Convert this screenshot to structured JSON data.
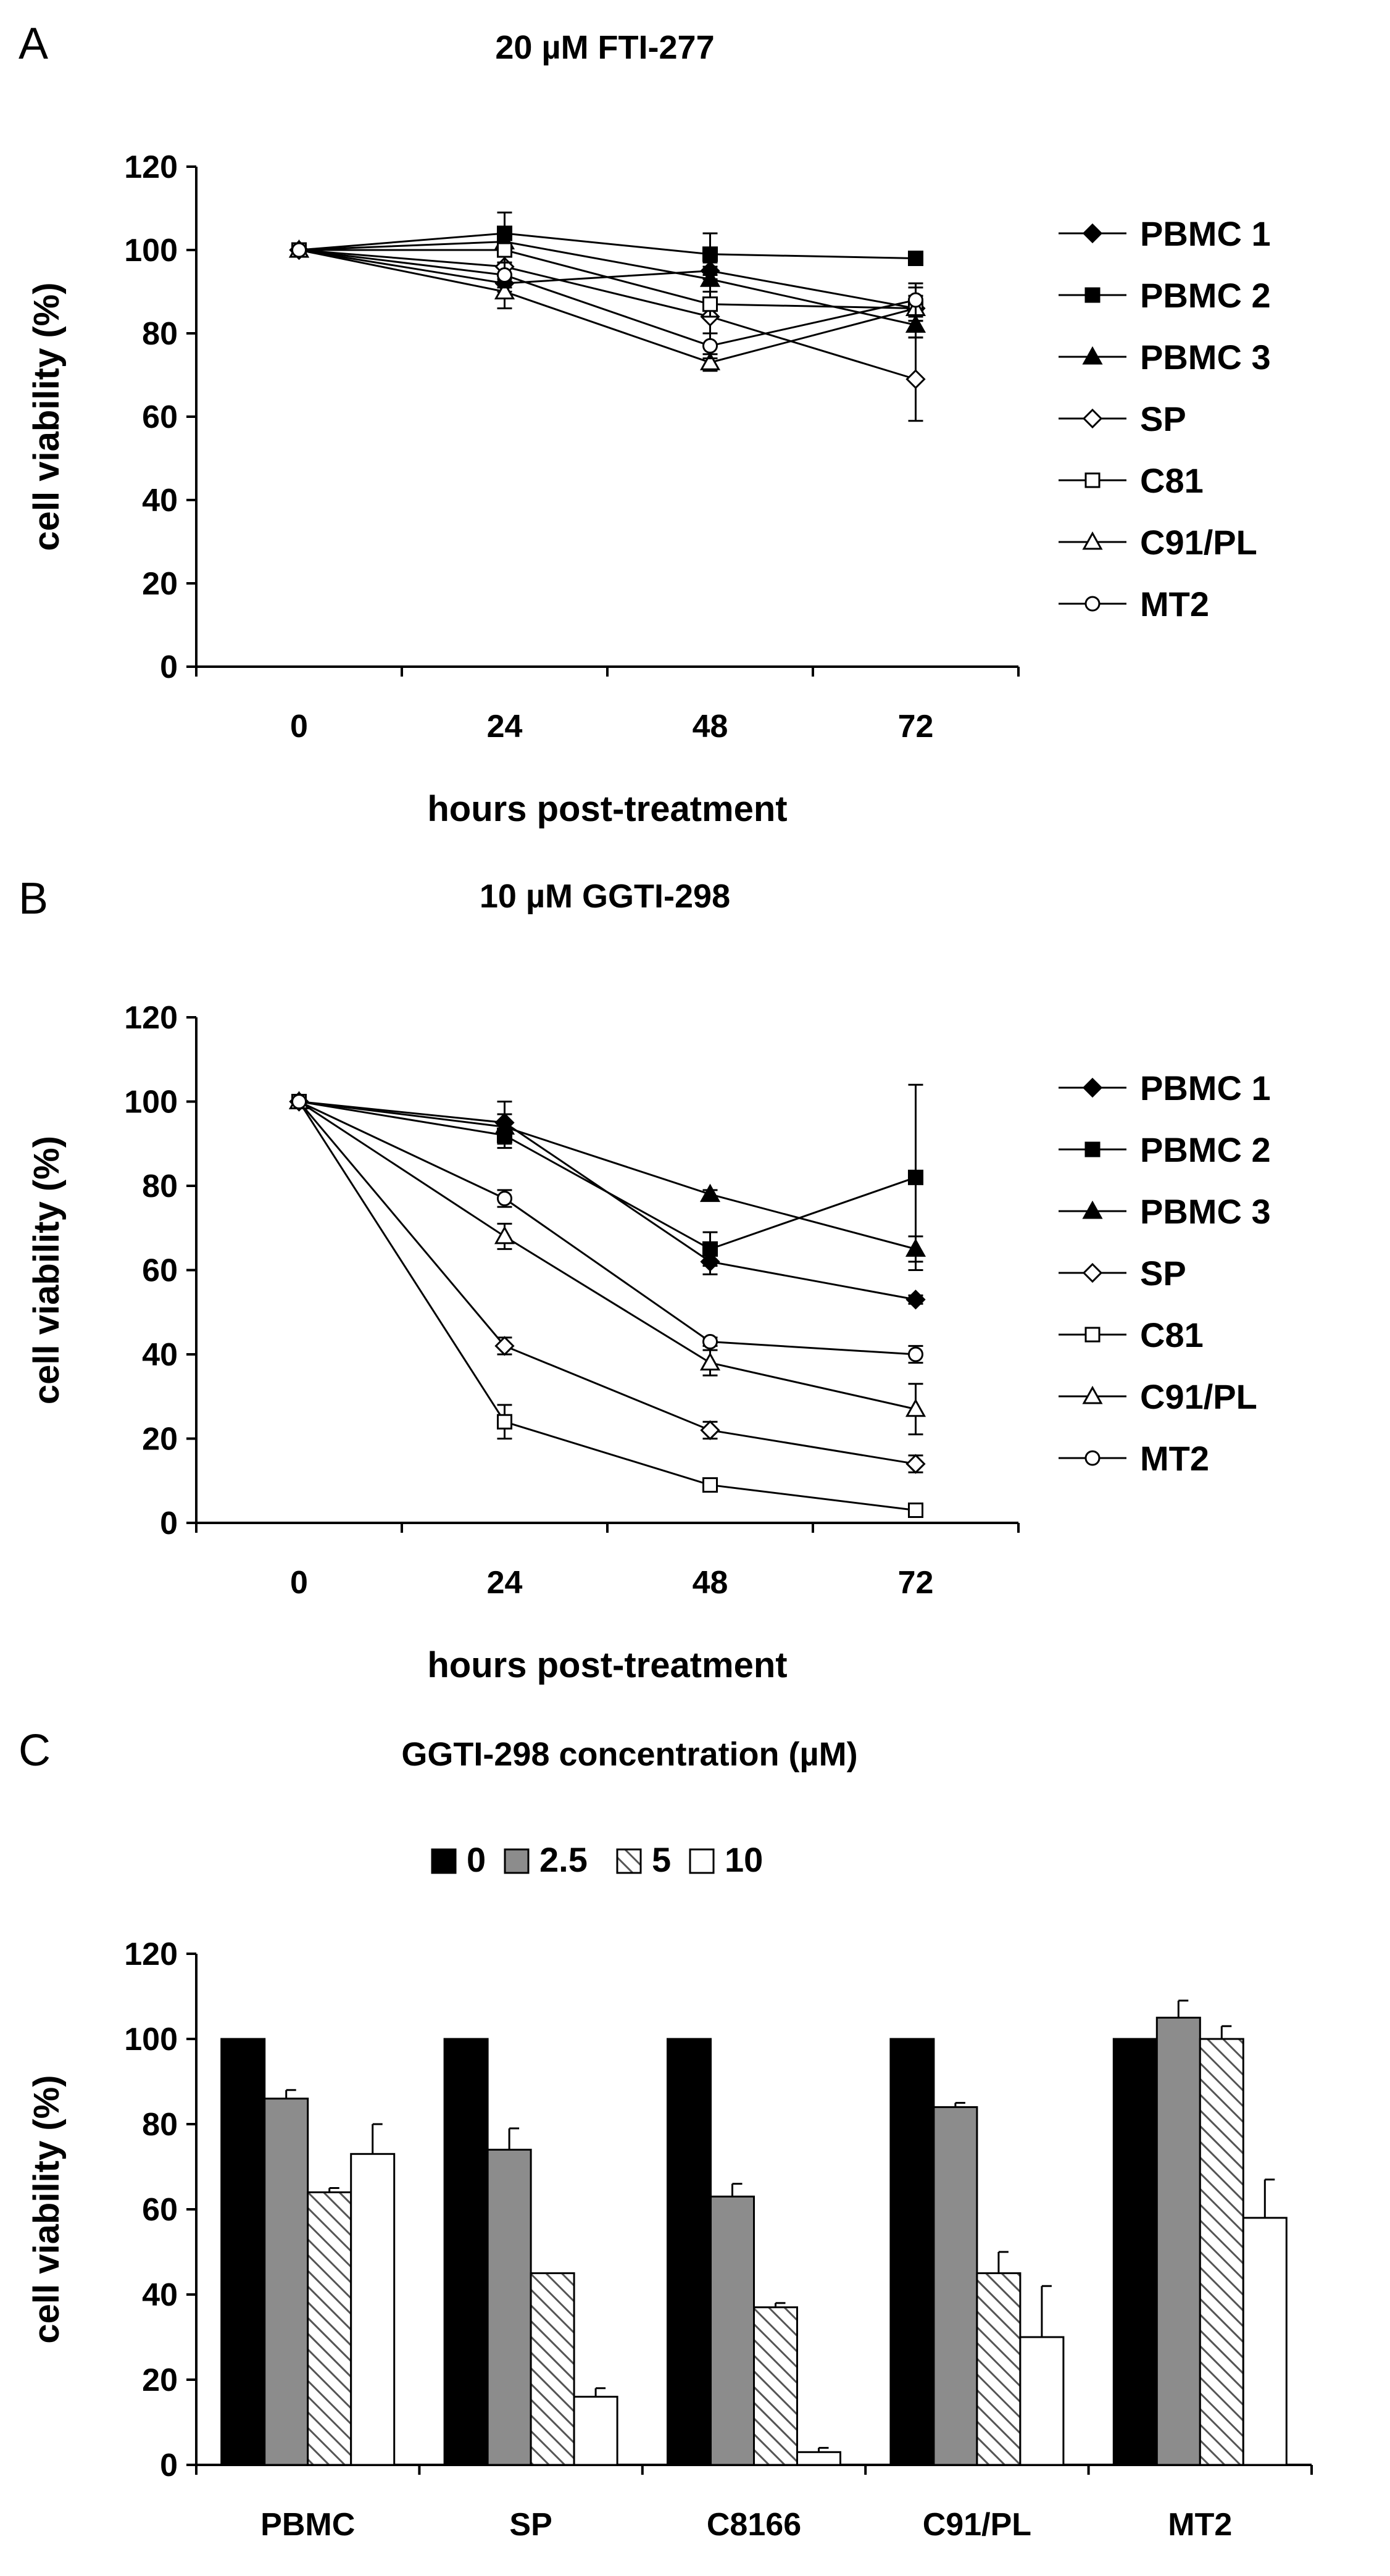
{
  "chart_data": [
    {
      "panel": "A",
      "type": "line",
      "title": "20 µM FTI-277",
      "xlabel": "hours post-treatment",
      "ylabel": "cell viability (%)",
      "categories": [
        "0",
        "24",
        "48",
        "72"
      ],
      "x": [
        0,
        24,
        48,
        72
      ],
      "ylim": [
        0,
        120
      ],
      "yticks": [
        "0",
        "20",
        "40",
        "60",
        "80",
        "100",
        "120"
      ],
      "legend_position": "right",
      "series": [
        {
          "name": "PBMC 1",
          "marker": "diamond-filled",
          "values": [
            100,
            92,
            95,
            86
          ],
          "errors": [
            0,
            2,
            2,
            3
          ]
        },
        {
          "name": "PBMC 2",
          "marker": "square-filled",
          "values": [
            100,
            104,
            99,
            98
          ],
          "errors": [
            0,
            5,
            5,
            1
          ]
        },
        {
          "name": "PBMC 3",
          "marker": "triangle-filled",
          "values": [
            100,
            102,
            93,
            82
          ],
          "errors": [
            0,
            3,
            3,
            3
          ]
        },
        {
          "name": "SP",
          "marker": "diamond-open",
          "values": [
            100,
            96,
            84,
            69
          ],
          "errors": [
            0,
            3,
            4,
            10
          ]
        },
        {
          "name": "C81",
          "marker": "square-open",
          "values": [
            100,
            100,
            87,
            86
          ],
          "errors": [
            0,
            3,
            3,
            3
          ]
        },
        {
          "name": "C91/PL",
          "marker": "triangle-open",
          "values": [
            100,
            90,
            73,
            86
          ],
          "errors": [
            0,
            4,
            2,
            5
          ]
        },
        {
          "name": "MT2",
          "marker": "circle-open",
          "values": [
            100,
            94,
            77,
            88
          ],
          "errors": [
            0,
            3,
            3,
            4
          ]
        }
      ]
    },
    {
      "panel": "B",
      "type": "line",
      "title": "10 µM GGTI-298",
      "xlabel": "hours post-treatment",
      "ylabel": "cell viability (%)",
      "categories": [
        "0",
        "24",
        "48",
        "72"
      ],
      "x": [
        0,
        24,
        48,
        72
      ],
      "ylim": [
        0,
        120
      ],
      "yticks": [
        "0",
        "20",
        "40",
        "60",
        "80",
        "100",
        "120"
      ],
      "legend_position": "right",
      "series": [
        {
          "name": "PBMC 1",
          "marker": "diamond-filled",
          "values": [
            100,
            95,
            62,
            53
          ],
          "errors": [
            0,
            5,
            3,
            1
          ]
        },
        {
          "name": "PBMC 2",
          "marker": "square-filled",
          "values": [
            100,
            92,
            65,
            82
          ],
          "errors": [
            0,
            3,
            4,
            22
          ]
        },
        {
          "name": "PBMC 3",
          "marker": "triangle-filled",
          "values": [
            100,
            94,
            78,
            65
          ],
          "errors": [
            0,
            3,
            1,
            3
          ]
        },
        {
          "name": "SP",
          "marker": "diamond-open",
          "values": [
            100,
            42,
            22,
            14
          ],
          "errors": [
            0,
            2,
            2,
            2
          ]
        },
        {
          "name": "C81",
          "marker": "square-open",
          "values": [
            100,
            24,
            9,
            3
          ],
          "errors": [
            0,
            4,
            1,
            1
          ]
        },
        {
          "name": "C91/PL",
          "marker": "triangle-open",
          "values": [
            100,
            68,
            38,
            27
          ],
          "errors": [
            0,
            3,
            3,
            6
          ]
        },
        {
          "name": "MT2",
          "marker": "circle-open",
          "values": [
            100,
            77,
            43,
            40
          ],
          "errors": [
            0,
            2,
            1,
            2
          ]
        }
      ]
    },
    {
      "panel": "C",
      "type": "bar",
      "title": "GGTI-298 concentration (µM)",
      "xlabel": "",
      "ylabel": "cell viability (%)",
      "categories": [
        "PBMC",
        "SP",
        "C8166",
        "C91/PL",
        "MT2"
      ],
      "ylim": [
        0,
        120
      ],
      "yticks": [
        "0",
        "20",
        "40",
        "60",
        "80",
        "100",
        "120"
      ],
      "legend_position": "top",
      "series": [
        {
          "name": "0",
          "fill": "black",
          "values": [
            100,
            100,
            100,
            100,
            100
          ],
          "errors": [
            0,
            0,
            0,
            0,
            0
          ]
        },
        {
          "name": "2.5",
          "fill": "gray",
          "values": [
            86,
            74,
            63,
            84,
            105
          ],
          "errors": [
            2,
            5,
            3,
            1,
            4
          ]
        },
        {
          "name": "5",
          "fill": "hatched",
          "values": [
            64,
            45,
            37,
            45,
            100
          ],
          "errors": [
            1,
            0,
            1,
            5,
            3
          ]
        },
        {
          "name": "10",
          "fill": "white",
          "values": [
            73,
            16,
            3,
            30,
            58
          ],
          "errors": [
            7,
            2,
            1,
            12,
            9
          ]
        }
      ]
    }
  ],
  "colors": {
    "black": "#000000",
    "gray": "#8c8c8c",
    "white": "#ffffff",
    "background": "#ffffff"
  }
}
